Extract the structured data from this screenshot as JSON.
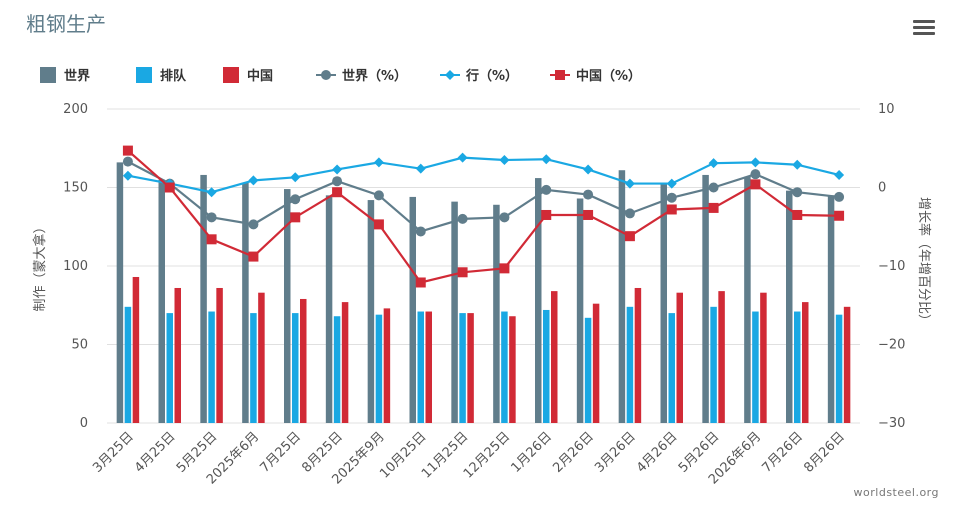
{
  "title": "粗钢生产",
  "menu_icon": "hamburger-menu-icon",
  "credit": "worldsteel.org",
  "chart_data": {
    "type": "bar+line",
    "categories": [
      "3月25日",
      "4月25日",
      "5月25日",
      "2025年6月",
      "7月25日",
      "8月25日",
      "2025年9月",
      "10月25日",
      "11月25日",
      "12月25日",
      "1月26日",
      "2月26日",
      "3月26日",
      "4月26日",
      "5月26日",
      "2026年6月",
      "7月26日",
      "8月26日"
    ],
    "ylabel_left": "制作（蒙大拿）",
    "ylabel_right": "增长率（年增百分比）",
    "ylim_left": [
      0,
      200
    ],
    "ylim_right": [
      -30,
      10
    ],
    "yticks_left": [
      "0",
      "50",
      "100",
      "150",
      "200"
    ],
    "yticks_right": [
      "−30",
      "−20",
      "−10",
      "0",
      "10"
    ],
    "bar_series": [
      {
        "name": "世界",
        "color": "#607d8b",
        "values": [
          166,
          155,
          158,
          153,
          149,
          145,
          142,
          144,
          141,
          139,
          156,
          143,
          161,
          153,
          158,
          157,
          148,
          145
        ]
      },
      {
        "name": "排队",
        "color": "#1aa8e3",
        "values": [
          74,
          70,
          71,
          70,
          70,
          68,
          69,
          71,
          70,
          71,
          72,
          67,
          74,
          70,
          74,
          71,
          71,
          69
        ]
      },
      {
        "name": "中国",
        "color": "#d12a36",
        "values": [
          93,
          86,
          86,
          83,
          79,
          77,
          73,
          71,
          70,
          68,
          84,
          76,
          86,
          83,
          84,
          83,
          77,
          74
        ]
      }
    ],
    "line_series": [
      {
        "name": "世界（%）",
        "color": "#607d8b",
        "marker": "circle",
        "values": [
          3.3,
          0.5,
          -3.8,
          -4.7,
          -1.5,
          0.8,
          -1.0,
          -5.6,
          -4.0,
          -3.8,
          -0.3,
          -0.9,
          -3.3,
          -1.3,
          0.0,
          1.7,
          -0.6,
          -1.2
        ]
      },
      {
        "name": "行（%）",
        "color": "#1aa8e3",
        "marker": "diamond",
        "values": [
          1.5,
          0.5,
          -0.6,
          0.9,
          1.3,
          2.3,
          3.2,
          2.4,
          3.8,
          3.5,
          3.6,
          2.3,
          0.5,
          0.5,
          3.1,
          3.2,
          2.9,
          1.6
        ]
      },
      {
        "name": "中国（%）",
        "color": "#d12a36",
        "marker": "square",
        "values": [
          4.7,
          0.0,
          -6.6,
          -8.8,
          -3.8,
          -0.6,
          -4.7,
          -12.1,
          -10.8,
          -10.3,
          -3.5,
          -3.5,
          -6.2,
          -2.8,
          -2.6,
          0.4,
          -3.5,
          -3.6
        ]
      }
    ],
    "grid": true,
    "legend_position": "top-left"
  }
}
